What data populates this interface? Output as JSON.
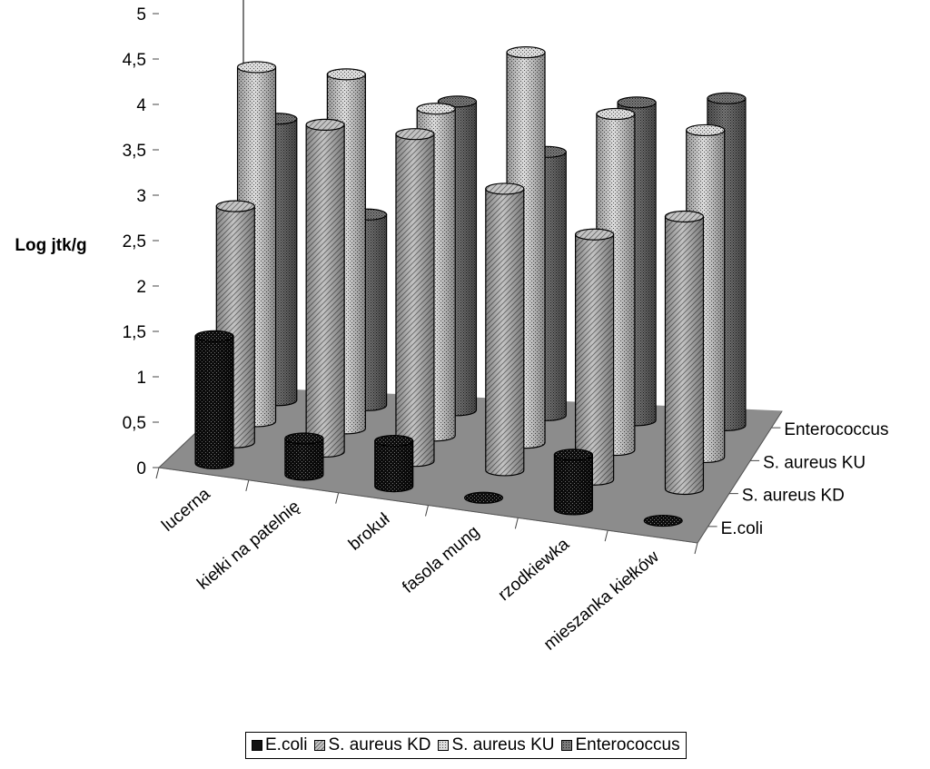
{
  "chart_data": {
    "type": "bar",
    "style": "3d-cylinder",
    "ylabel": "Log jtk/g",
    "ylim": [
      0,
      5
    ],
    "yticks": [
      "0",
      "0,5",
      "1",
      "1,5",
      "2",
      "2,5",
      "3",
      "3,5",
      "4",
      "4,5",
      "5"
    ],
    "categories": [
      "lucerna",
      "kiełki na patelnię",
      "brokuł",
      "fasola mung",
      "rzodkiewka",
      "mieszanka kiełków"
    ],
    "series": [
      {
        "name": "E.coli",
        "values": [
          1.4,
          0.4,
          0.5,
          0,
          0.6,
          0
        ],
        "color": "#101010"
      },
      {
        "name": "S. aureus KD",
        "values": [
          2.6,
          3.6,
          3.6,
          3.1,
          2.7,
          3.0
        ],
        "color": "#bdbdbd"
      },
      {
        "name": "S. aureus KU",
        "values": [
          3.9,
          3.9,
          3.6,
          4.3,
          3.7,
          3.6
        ],
        "color": "#d0d0d0"
      },
      {
        "name": "Enterococcus",
        "values": [
          3.1,
          2.1,
          3.4,
          2.9,
          3.5,
          3.6
        ],
        "color": "#6e6e6e"
      }
    ]
  },
  "legend": {
    "items": [
      "E.coli",
      "S. aureus KD",
      "S. aureus KU",
      "Enterococcus"
    ]
  }
}
